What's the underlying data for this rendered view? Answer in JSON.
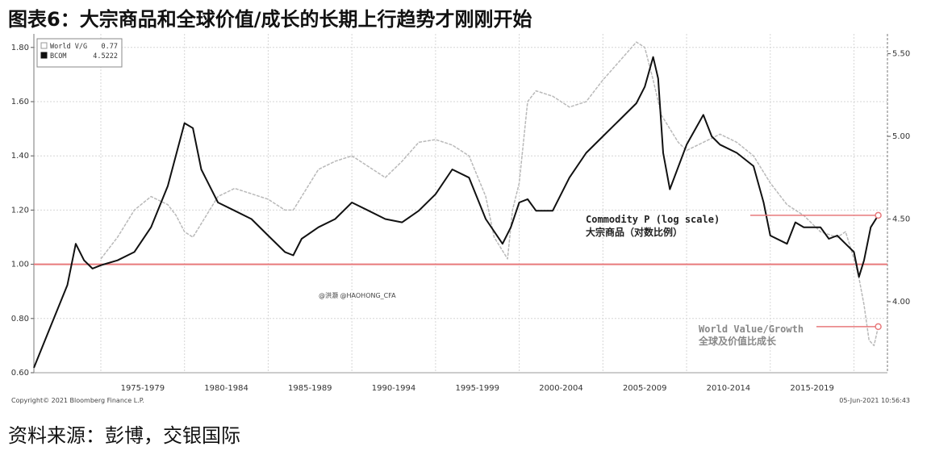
{
  "header": {
    "title": "图表6：大宗商品和全球价值/成长的长期上行趋势才刚刚开始"
  },
  "footer": {
    "source": "资料来源：彭博，交银国际"
  },
  "chart_data": {
    "type": "line",
    "title": "图表6：大宗商品和全球价值/成长的长期上行趋势才刚刚开始",
    "x_tick_labels": [
      "1975-1979",
      "1980-1984",
      "1985-1989",
      "1990-1994",
      "1995-1999",
      "2000-2004",
      "2005-2009",
      "2010-2014",
      "2015-2019"
    ],
    "xlim": [
      1971,
      2022
    ],
    "left_axis": {
      "ticks": [
        "0.60",
        "0.80",
        "1.00",
        "1.20",
        "1.40",
        "1.60",
        "1.80"
      ],
      "ylim": [
        0.6,
        1.85
      ]
    },
    "right_axis": {
      "ticks": [
        "4.00",
        "4.50",
        "5.00",
        "5.50"
      ],
      "ylim": [
        3.57,
        5.62
      ],
      "scale": "log"
    },
    "reference_line": {
      "axis": "left",
      "value": 1.0,
      "color": "#e8797b"
    },
    "grid": true,
    "legend": {
      "placement": "top-left",
      "entries": [
        {
          "label": "World V/G",
          "value": "0.77"
        },
        {
          "label": "BCOM",
          "value": "4.5222"
        }
      ]
    },
    "annotations": {
      "commodity_en": "Commodity P (log scale)",
      "commodity_cn": "大宗商品（对数比例）",
      "worldvg_en": "World Value/Growth",
      "worldvg_cn": "全球及价值比成长",
      "watermark": "@洪灏 @HAOHONG_CFA"
    },
    "copyright": "Copyright© 2021 Bloomberg Finance L.P.",
    "timestamp": "05-Jun-2021 10:56:43",
    "series": [
      {
        "name": "World V/G",
        "axis": "left",
        "color": "#b9b9b9",
        "x": [
          1975.0,
          1976.0,
          1977.0,
          1978.0,
          1979.0,
          1979.5,
          1980.0,
          1980.5,
          1981.0,
          1982.0,
          1983.0,
          1984.0,
          1985.0,
          1986.0,
          1986.5,
          1987.0,
          1988.0,
          1989.0,
          1990.0,
          1991.0,
          1992.0,
          1993.0,
          1994.0,
          1995.0,
          1996.0,
          1997.0,
          1998.0,
          1998.5,
          1999.0,
          1999.3,
          1999.6,
          2000.0,
          2000.5,
          2001.0,
          2002.0,
          2003.0,
          2004.0,
          2005.0,
          2006.0,
          2007.0,
          2007.5,
          2008.0,
          2008.5,
          2009.0,
          2009.5,
          2010.0,
          2011.0,
          2012.0,
          2013.0,
          2014.0,
          2015.0,
          2016.0,
          2017.0,
          2018.0,
          2019.0,
          2019.5,
          2020.0,
          2020.3,
          2020.6,
          2020.9,
          2021.2,
          2021.45
        ],
        "y": [
          1.02,
          1.1,
          1.2,
          1.25,
          1.22,
          1.18,
          1.12,
          1.1,
          1.15,
          1.25,
          1.28,
          1.26,
          1.24,
          1.2,
          1.2,
          1.25,
          1.35,
          1.38,
          1.4,
          1.36,
          1.32,
          1.38,
          1.45,
          1.46,
          1.44,
          1.4,
          1.25,
          1.1,
          1.05,
          1.02,
          1.2,
          1.3,
          1.6,
          1.64,
          1.62,
          1.58,
          1.6,
          1.68,
          1.75,
          1.82,
          1.8,
          1.68,
          1.55,
          1.5,
          1.45,
          1.42,
          1.45,
          1.48,
          1.45,
          1.4,
          1.3,
          1.22,
          1.18,
          1.12,
          1.1,
          1.12,
          1.02,
          0.95,
          0.85,
          0.72,
          0.7,
          0.77
        ]
      },
      {
        "name": "BCOM",
        "axis": "right",
        "color": "#111111",
        "x": [
          1971.0,
          1972.0,
          1973.0,
          1973.5,
          1974.0,
          1974.5,
          1975.0,
          1976.0,
          1977.0,
          1978.0,
          1979.0,
          1980.0,
          1980.5,
          1981.0,
          1982.0,
          1983.0,
          1984.0,
          1985.0,
          1986.0,
          1986.5,
          1987.0,
          1988.0,
          1989.0,
          1990.0,
          1991.0,
          1992.0,
          1993.0,
          1994.0,
          1995.0,
          1996.0,
          1997.0,
          1998.0,
          1999.0,
          1999.5,
          2000.0,
          2000.5,
          2001.0,
          2002.0,
          2003.0,
          2004.0,
          2005.0,
          2006.0,
          2007.0,
          2007.5,
          2008.0,
          2008.3,
          2008.6,
          2009.0,
          2010.0,
          2011.0,
          2011.5,
          2012.0,
          2013.0,
          2014.0,
          2014.6,
          2015.0,
          2016.0,
          2016.5,
          2017.0,
          2018.0,
          2018.5,
          2019.0,
          2019.5,
          2020.0,
          2020.3,
          2020.6,
          2021.0,
          2021.45
        ],
        "y": [
          3.6,
          3.85,
          4.1,
          4.35,
          4.25,
          4.2,
          4.22,
          4.25,
          4.3,
          4.45,
          4.7,
          5.08,
          5.05,
          4.8,
          4.6,
          4.55,
          4.5,
          4.4,
          4.3,
          4.28,
          4.38,
          4.45,
          4.5,
          4.6,
          4.55,
          4.5,
          4.48,
          4.55,
          4.65,
          4.8,
          4.75,
          4.5,
          4.35,
          4.45,
          4.6,
          4.62,
          4.55,
          4.55,
          4.75,
          4.9,
          5.0,
          5.1,
          5.2,
          5.3,
          5.48,
          5.35,
          4.9,
          4.68,
          4.95,
          5.13,
          5.0,
          4.95,
          4.9,
          4.82,
          4.6,
          4.4,
          4.35,
          4.48,
          4.45,
          4.45,
          4.38,
          4.4,
          4.35,
          4.3,
          4.15,
          4.25,
          4.45,
          4.5222
        ]
      }
    ]
  }
}
